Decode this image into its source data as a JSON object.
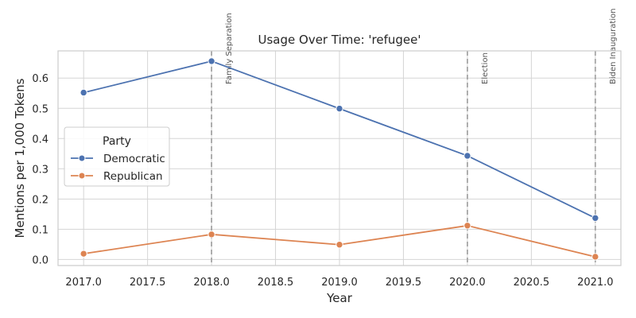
{
  "chart_data": {
    "type": "line",
    "title": "Usage Over Time: 'refugee'",
    "xlabel": "Year",
    "ylabel": "Mentions per 1,000 Tokens",
    "xlim": [
      2016.8,
      2021.2
    ],
    "ylim": [
      -0.02,
      0.69
    ],
    "xticks": [
      2017.0,
      2017.5,
      2018.0,
      2018.5,
      2019.0,
      2019.5,
      2020.0,
      2020.5,
      2021.0
    ],
    "xtick_labels": [
      "2017.0",
      "2017.5",
      "2018.0",
      "2018.5",
      "2019.0",
      "2019.5",
      "2020.0",
      "2020.5",
      "2021.0"
    ],
    "yticks": [
      0.0,
      0.1,
      0.2,
      0.3,
      0.4,
      0.5,
      0.6
    ],
    "ytick_labels": [
      "0.0",
      "0.1",
      "0.2",
      "0.3",
      "0.4",
      "0.5",
      "0.6"
    ],
    "grid": true,
    "legend": {
      "title": "Party",
      "placement": "center-left"
    },
    "series": [
      {
        "name": "Democratic",
        "color": "#4c72b0",
        "x": [
          2017,
          2018,
          2019,
          2020,
          2021
        ],
        "y": [
          0.552,
          0.656,
          0.499,
          0.343,
          0.137
        ]
      },
      {
        "name": "Republican",
        "color": "#dd8452",
        "x": [
          2017,
          2018,
          2019,
          2020,
          2021
        ],
        "y": [
          0.019,
          0.083,
          0.049,
          0.112,
          0.009
        ]
      }
    ],
    "annotations": [
      {
        "x": 2018.0,
        "label": "Family Separation"
      },
      {
        "x": 2020.0,
        "label": "Election"
      },
      {
        "x": 2021.0,
        "label": "Biden Inauguration"
      }
    ]
  }
}
